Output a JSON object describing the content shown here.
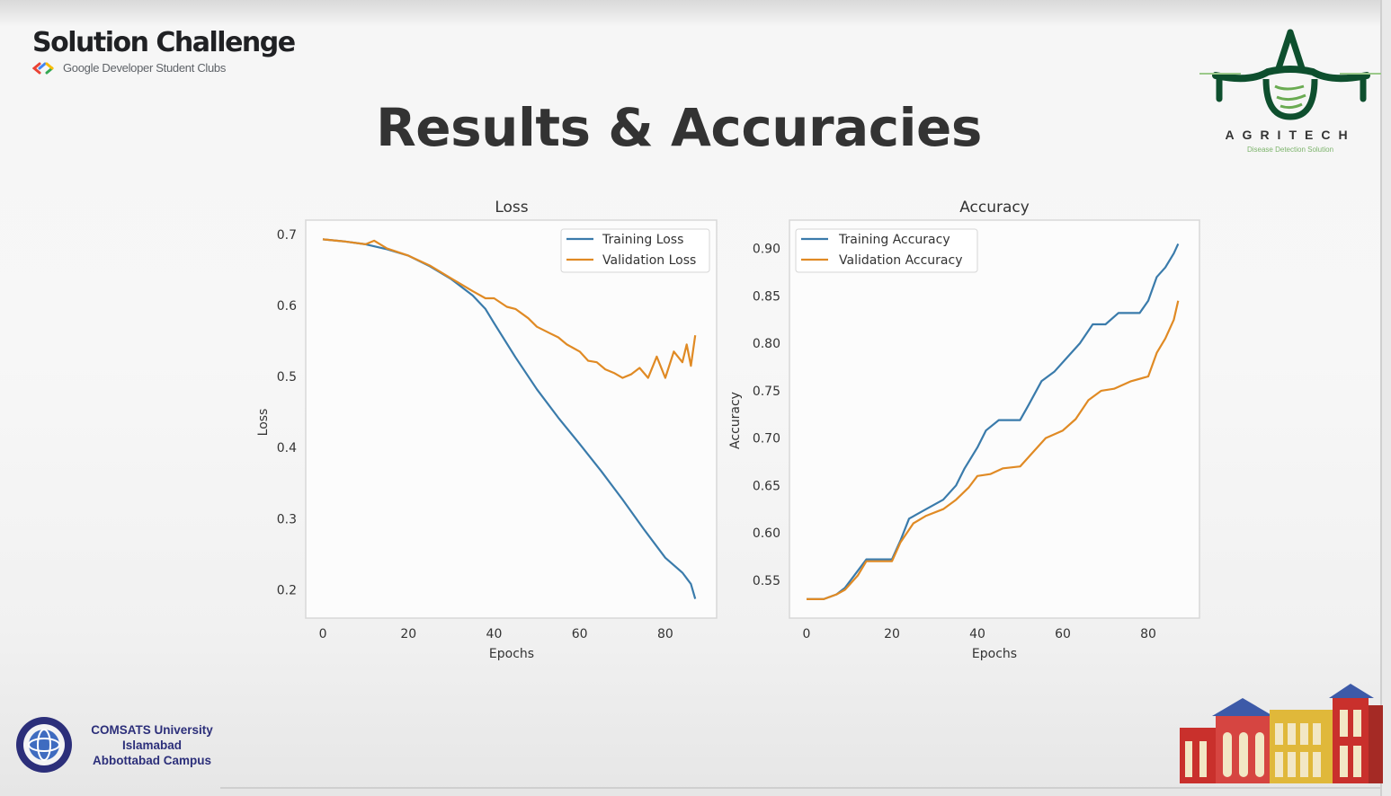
{
  "header": {
    "brand_title": "Solution Challenge",
    "brand_subtitle": "Google Developer Student Clubs",
    "slide_title": "Results & Accuracies"
  },
  "logos": {
    "agritech_name": "AGRITECH",
    "agritech_tagline": "Disease Detection Solution",
    "university_line1": "COMSATS University",
    "university_line2": "Islamabad",
    "university_line3": "Abbottabad Campus"
  },
  "colors": {
    "training": "#3a7bab",
    "validation": "#e08a24",
    "agritech_green": "#0e4f2e",
    "university_blue": "#2c2f7a"
  },
  "chart_data": [
    {
      "type": "line",
      "title": "Loss",
      "xlabel": "Epochs",
      "ylabel": "Loss",
      "xlim": [
        -4,
        92
      ],
      "ylim": [
        0.16,
        0.72
      ],
      "xticks": [
        0,
        20,
        40,
        60,
        80
      ],
      "yticks": [
        0.2,
        0.3,
        0.4,
        0.5,
        0.6,
        0.7
      ],
      "ytick_labels": [
        "0.2",
        "0.3",
        "0.4",
        "0.5",
        "0.6",
        "0.7"
      ],
      "legend": "top-right",
      "grid": false,
      "series": [
        {
          "name": "Training Loss",
          "x": [
            0,
            5,
            10,
            15,
            20,
            25,
            30,
            35,
            38,
            40,
            45,
            50,
            55,
            60,
            65,
            70,
            75,
            80,
            84,
            86,
            87
          ],
          "y": [
            0.693,
            0.69,
            0.686,
            0.679,
            0.67,
            0.655,
            0.637,
            0.614,
            0.595,
            0.575,
            0.527,
            0.482,
            0.442,
            0.405,
            0.367,
            0.327,
            0.285,
            0.245,
            0.224,
            0.208,
            0.187
          ]
        },
        {
          "name": "Validation Loss",
          "x": [
            0,
            5,
            10,
            12,
            15,
            20,
            25,
            30,
            35,
            38,
            40,
            43,
            45,
            48,
            50,
            53,
            55,
            57,
            60,
            62,
            64,
            66,
            68,
            70,
            72,
            74,
            76,
            78,
            80,
            82,
            84,
            85,
            86,
            87
          ],
          "y": [
            0.693,
            0.69,
            0.686,
            0.691,
            0.68,
            0.67,
            0.656,
            0.638,
            0.62,
            0.61,
            0.61,
            0.598,
            0.595,
            0.582,
            0.57,
            0.561,
            0.555,
            0.545,
            0.535,
            0.522,
            0.52,
            0.51,
            0.505,
            0.498,
            0.503,
            0.512,
            0.498,
            0.528,
            0.498,
            0.535,
            0.52,
            0.545,
            0.515,
            0.558
          ]
        }
      ]
    },
    {
      "type": "line",
      "title": "Accuracy",
      "xlabel": "Epochs",
      "ylabel": "Accuracy",
      "xlim": [
        -4,
        92
      ],
      "ylim": [
        0.51,
        0.93
      ],
      "xticks": [
        0,
        20,
        40,
        60,
        80
      ],
      "yticks": [
        0.55,
        0.6,
        0.65,
        0.7,
        0.75,
        0.8,
        0.85,
        0.9
      ],
      "ytick_labels": [
        "0.55",
        "0.60",
        "0.65",
        "0.70",
        "0.75",
        "0.80",
        "0.85",
        "0.90"
      ],
      "legend": "top-left",
      "grid": false,
      "series": [
        {
          "name": "Training Accuracy",
          "x": [
            0,
            4,
            7,
            9,
            12,
            14,
            20,
            22,
            24,
            28,
            32,
            35,
            37,
            40,
            42,
            45,
            50,
            52,
            55,
            58,
            61,
            64,
            67,
            70,
            73,
            78,
            80,
            82,
            84,
            86,
            87
          ],
          "y": [
            0.53,
            0.53,
            0.535,
            0.542,
            0.56,
            0.572,
            0.572,
            0.592,
            0.615,
            0.625,
            0.635,
            0.65,
            0.668,
            0.69,
            0.708,
            0.719,
            0.719,
            0.735,
            0.76,
            0.77,
            0.785,
            0.8,
            0.82,
            0.82,
            0.832,
            0.832,
            0.845,
            0.87,
            0.88,
            0.895,
            0.905
          ]
        },
        {
          "name": "Validation Accuracy",
          "x": [
            0,
            4,
            7,
            9,
            12,
            14,
            20,
            22,
            25,
            28,
            32,
            35,
            38,
            40,
            43,
            46,
            50,
            53,
            56,
            60,
            63,
            66,
            69,
            72,
            76,
            80,
            82,
            84,
            86,
            87
          ],
          "y": [
            0.53,
            0.53,
            0.535,
            0.54,
            0.555,
            0.57,
            0.57,
            0.59,
            0.61,
            0.618,
            0.625,
            0.635,
            0.648,
            0.66,
            0.662,
            0.668,
            0.67,
            0.685,
            0.7,
            0.708,
            0.72,
            0.74,
            0.75,
            0.752,
            0.76,
            0.765,
            0.79,
            0.805,
            0.825,
            0.845
          ]
        }
      ]
    }
  ]
}
